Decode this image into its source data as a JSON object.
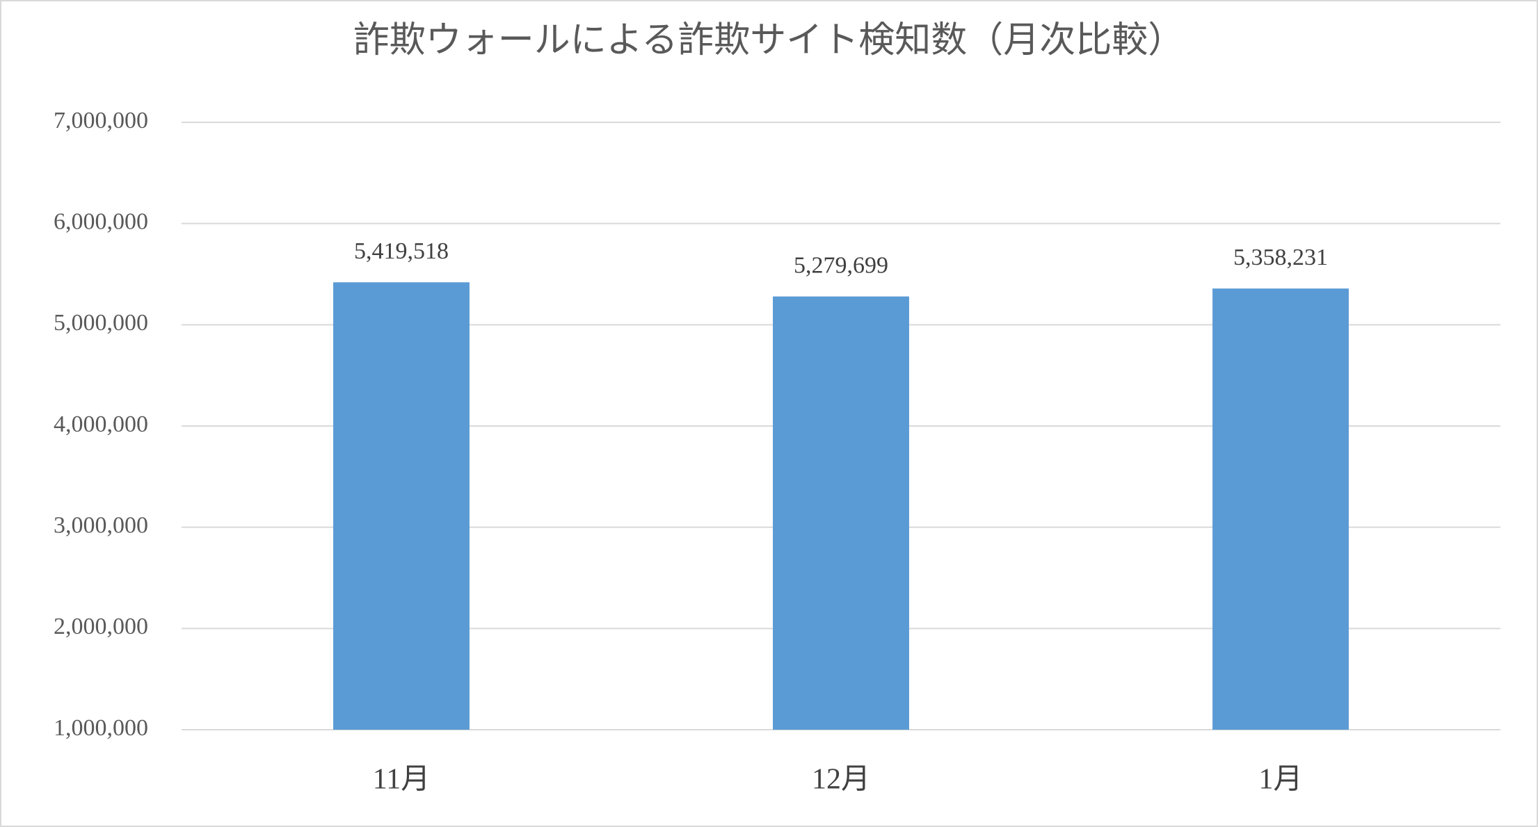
{
  "chart_data": {
    "type": "bar",
    "title": "詐欺ウォールによる詐欺サイト検知数（月次比較）",
    "categories": [
      "11月",
      "12月",
      "1月"
    ],
    "values": [
      5419518,
      5279699,
      5358231
    ],
    "value_labels": [
      "5,419,518",
      "5,279,699",
      "5,358,231"
    ],
    "color": "#5b9bd5",
    "ylim": [
      1000000,
      7000000
    ],
    "yticks": [
      {
        "value": 1000000,
        "label": "1,000,000"
      },
      {
        "value": 2000000,
        "label": "2,000,000"
      },
      {
        "value": 3000000,
        "label": "3,000,000"
      },
      {
        "value": 4000000,
        "label": "4,000,000"
      },
      {
        "value": 5000000,
        "label": "5,000,000"
      },
      {
        "value": 6000000,
        "label": "6,000,000"
      },
      {
        "value": 7000000,
        "label": "7,000,000"
      }
    ],
    "grid": true
  }
}
